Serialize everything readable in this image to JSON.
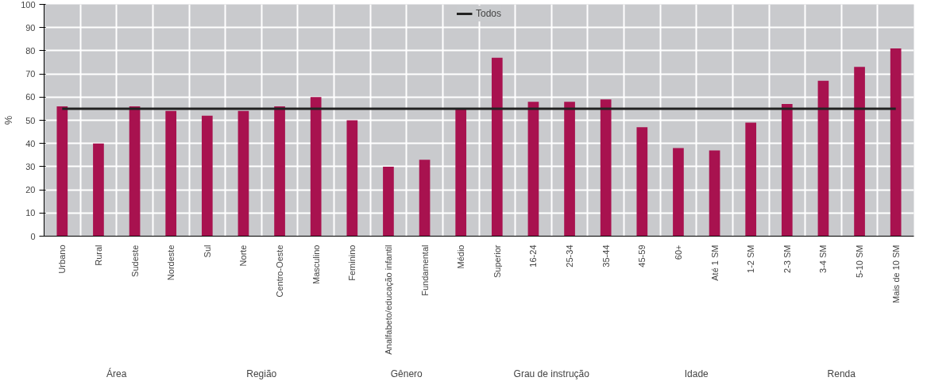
{
  "chart_data": {
    "type": "bar",
    "ylabel": "%",
    "categories": [
      "Urbano",
      "Rural",
      "Sudeste",
      "Nordeste",
      "Sul",
      "Norte",
      "Centro-Oeste",
      "Masculino",
      "Feminino",
      "Analfabeto/educação infantil",
      "Fundamental",
      "Médio",
      "Superior",
      "16-24",
      "25-34",
      "35-44",
      "45-59",
      "60+",
      "Até 1 SM",
      "1-2 SM",
      "2-3 SM",
      "3-4 SM",
      "5-10 SM",
      "Mais de 10 SM"
    ],
    "values": [
      56,
      40,
      56,
      54,
      52,
      54,
      56,
      60,
      50,
      30,
      33,
      55,
      77,
      58,
      58,
      59,
      47,
      38,
      37,
      49,
      57,
      67,
      73,
      81
    ],
    "color": "#a8124f",
    "ylim": [
      0,
      100
    ],
    "yticks": [
      0,
      10,
      20,
      30,
      40,
      50,
      60,
      70,
      80,
      90,
      100
    ],
    "grid": true,
    "legend": "top",
    "ref_lines": [
      {
        "axis": "y",
        "value": 55,
        "label": "Todos",
        "color": "#222222"
      }
    ],
    "annotations": [
      "Área",
      "Região",
      "Gênero",
      "Grau de instrução",
      "Idade",
      "Renda"
    ]
  }
}
